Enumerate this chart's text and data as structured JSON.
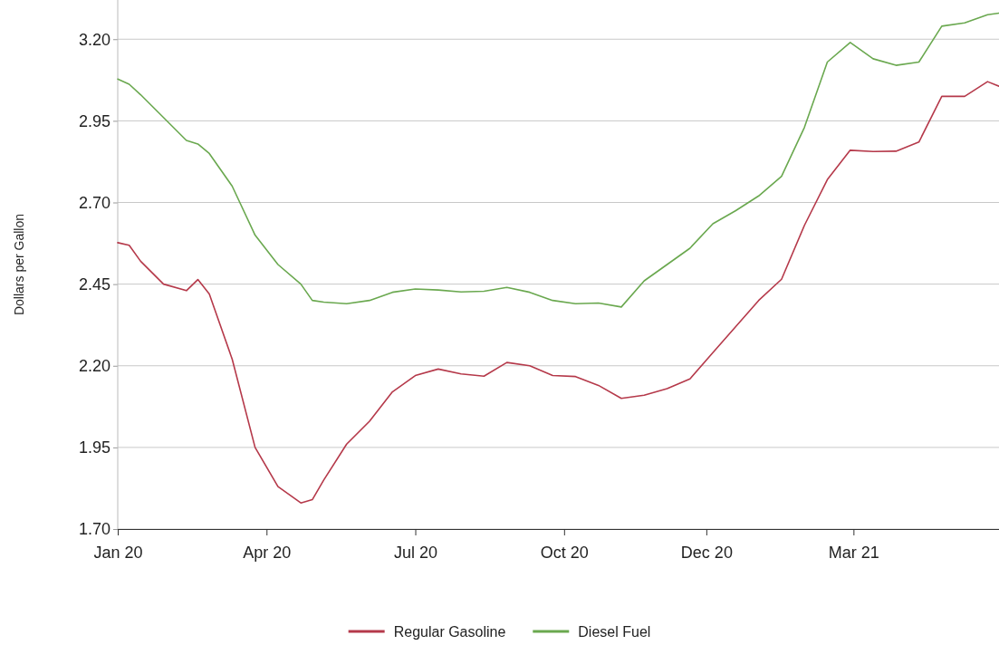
{
  "chart_data": {
    "type": "line",
    "ylabel": "Dollars per Gallon",
    "x": [
      "2020-01-06",
      "2020-01-13",
      "2020-01-20",
      "2020-02-03",
      "2020-02-17",
      "2020-02-24",
      "2020-03-02",
      "2020-03-16",
      "2020-03-30",
      "2020-04-13",
      "2020-04-27",
      "2020-05-04",
      "2020-05-11",
      "2020-05-25",
      "2020-06-08",
      "2020-06-22",
      "2020-07-06",
      "2020-07-20",
      "2020-08-03",
      "2020-08-17",
      "2020-08-31",
      "2020-09-14",
      "2020-09-28",
      "2020-10-12",
      "2020-10-26",
      "2020-11-09",
      "2020-11-23",
      "2020-12-07",
      "2020-12-21",
      "2021-01-04",
      "2021-01-18",
      "2021-02-01",
      "2021-02-15",
      "2021-03-01",
      "2021-03-15",
      "2021-03-29",
      "2021-04-12",
      "2021-04-26",
      "2021-05-10",
      "2021-05-24",
      "2021-06-07",
      "2021-06-21",
      "2021-06-28"
    ],
    "series": [
      {
        "name": "Regular Gasoline",
        "color": "#b5394a",
        "values": [
          2.577,
          2.569,
          2.52,
          2.45,
          2.43,
          2.464,
          2.42,
          2.22,
          1.95,
          1.83,
          1.78,
          1.79,
          1.85,
          1.96,
          2.03,
          2.12,
          2.17,
          2.19,
          2.175,
          2.168,
          2.21,
          2.2,
          2.17,
          2.167,
          2.14,
          2.1,
          2.11,
          2.13,
          2.16,
          2.24,
          2.32,
          2.4,
          2.465,
          2.63,
          2.77,
          2.86,
          2.856,
          2.857,
          2.885,
          3.025,
          3.025,
          3.07,
          3.056
        ]
      },
      {
        "name": "Diesel Fuel",
        "color": "#6aa84f",
        "values": [
          3.078,
          3.062,
          3.03,
          2.96,
          2.89,
          2.879,
          2.85,
          2.75,
          2.6,
          2.51,
          2.45,
          2.4,
          2.395,
          2.39,
          2.4,
          2.425,
          2.435,
          2.432,
          2.426,
          2.428,
          2.44,
          2.425,
          2.4,
          2.39,
          2.392,
          2.38,
          2.46,
          2.51,
          2.56,
          2.635,
          2.675,
          2.72,
          2.78,
          2.93,
          3.13,
          3.19,
          3.14,
          3.12,
          3.13,
          3.24,
          3.25,
          3.275,
          3.28
        ]
      }
    ],
    "xlim": [
      "2020-01-06",
      "2021-06-28"
    ],
    "xticks": [
      {
        "value": "2020-01-06",
        "label": "Jan 20"
      },
      {
        "value": "2020-04-06",
        "label": "Apr 20"
      },
      {
        "value": "2020-07-06",
        "label": "Jul 20"
      },
      {
        "value": "2020-10-05",
        "label": "Oct 20"
      },
      {
        "value": "2020-12-31",
        "label": "Dec 20"
      },
      {
        "value": "2021-03-31",
        "label": "Mar 21"
      }
    ],
    "ylim": [
      1.7,
      3.32
    ],
    "yticks": [
      {
        "value": 1.7,
        "label": "1.70"
      },
      {
        "value": 1.95,
        "label": "1.95"
      },
      {
        "value": 2.2,
        "label": "2.20"
      },
      {
        "value": 2.45,
        "label": "2.45"
      },
      {
        "value": 2.7,
        "label": "2.70"
      },
      {
        "value": 2.95,
        "label": "2.95"
      },
      {
        "value": 3.2,
        "label": "3.20"
      }
    ],
    "grid": "y",
    "legend": "bottom",
    "marker": "none",
    "line_style": "solid"
  }
}
